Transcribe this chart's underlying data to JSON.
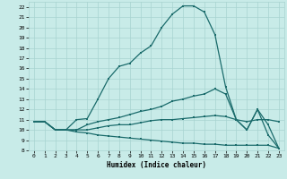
{
  "title": "",
  "xlabel": "Humidex (Indice chaleur)",
  "ylabel": "",
  "bg_color": "#c8ebe8",
  "grid_color": "#a8d4d0",
  "line_color": "#1a6b6b",
  "xlim": [
    -0.5,
    23.5
  ],
  "ylim": [
    8,
    22.5
  ],
  "yticks": [
    8,
    9,
    10,
    11,
    12,
    13,
    14,
    15,
    16,
    17,
    18,
    19,
    20,
    21,
    22
  ],
  "xticks": [
    0,
    1,
    2,
    3,
    4,
    5,
    6,
    7,
    8,
    9,
    10,
    11,
    12,
    13,
    14,
    15,
    16,
    17,
    18,
    19,
    20,
    21,
    22,
    23
  ],
  "curve1_x": [
    0,
    1,
    2,
    3,
    4,
    5,
    6,
    7,
    8,
    9,
    10,
    11,
    12,
    13,
    14,
    15,
    16,
    17,
    18,
    19,
    20,
    21,
    22,
    23
  ],
  "curve1_y": [
    10.8,
    10.8,
    10.0,
    10.0,
    11.0,
    11.1,
    13.0,
    15.0,
    16.2,
    16.5,
    17.5,
    18.2,
    20.0,
    21.3,
    22.1,
    22.1,
    21.5,
    19.3,
    14.2,
    11.0,
    10.0,
    12.0,
    9.5,
    8.2
  ],
  "curve2_x": [
    0,
    1,
    2,
    3,
    4,
    5,
    6,
    7,
    8,
    9,
    10,
    11,
    12,
    13,
    14,
    15,
    16,
    17,
    18,
    19,
    20,
    21,
    22,
    23
  ],
  "curve2_y": [
    10.8,
    10.8,
    10.0,
    10.0,
    10.0,
    10.5,
    10.8,
    11.0,
    11.2,
    11.5,
    11.8,
    12.0,
    12.3,
    12.8,
    13.0,
    13.3,
    13.5,
    14.0,
    13.5,
    11.0,
    10.0,
    12.0,
    10.5,
    8.2
  ],
  "curve3_x": [
    0,
    1,
    2,
    3,
    4,
    5,
    6,
    7,
    8,
    9,
    10,
    11,
    12,
    13,
    14,
    15,
    16,
    17,
    18,
    19,
    20,
    21,
    22,
    23
  ],
  "curve3_y": [
    10.8,
    10.8,
    10.0,
    10.0,
    10.0,
    10.0,
    10.2,
    10.4,
    10.5,
    10.5,
    10.7,
    10.9,
    11.0,
    11.0,
    11.1,
    11.2,
    11.3,
    11.4,
    11.3,
    11.0,
    10.8,
    11.0,
    11.0,
    10.8
  ],
  "curve4_x": [
    0,
    1,
    2,
    3,
    4,
    5,
    6,
    7,
    8,
    9,
    10,
    11,
    12,
    13,
    14,
    15,
    16,
    17,
    18,
    19,
    20,
    21,
    22,
    23
  ],
  "curve4_y": [
    10.8,
    10.8,
    10.0,
    10.0,
    9.8,
    9.7,
    9.5,
    9.4,
    9.3,
    9.2,
    9.1,
    9.0,
    8.9,
    8.8,
    8.7,
    8.7,
    8.6,
    8.6,
    8.5,
    8.5,
    8.5,
    8.5,
    8.5,
    8.2
  ]
}
